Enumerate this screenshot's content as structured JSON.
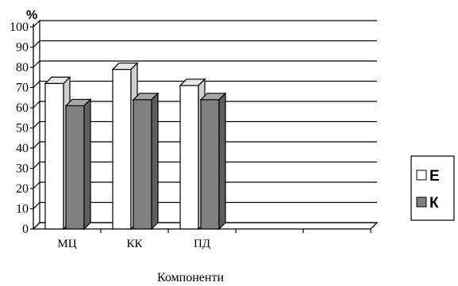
{
  "chart_data": {
    "type": "bar",
    "title": "",
    "ylabel": "%",
    "xlabel": "Компоненти",
    "ylim": [
      0,
      100
    ],
    "yticks": [
      0,
      10,
      20,
      30,
      40,
      50,
      60,
      70,
      80,
      90,
      100
    ],
    "categories": [
      "МЦ",
      "КК",
      "ПД"
    ],
    "series": [
      {
        "name": "Е",
        "color": "#ffffff",
        "values": [
          72,
          79,
          71
        ]
      },
      {
        "name": "К",
        "color": "#808080",
        "values": [
          61,
          64,
          64
        ]
      }
    ],
    "grid": true,
    "legend_position": "right",
    "style": "3d-bar"
  }
}
